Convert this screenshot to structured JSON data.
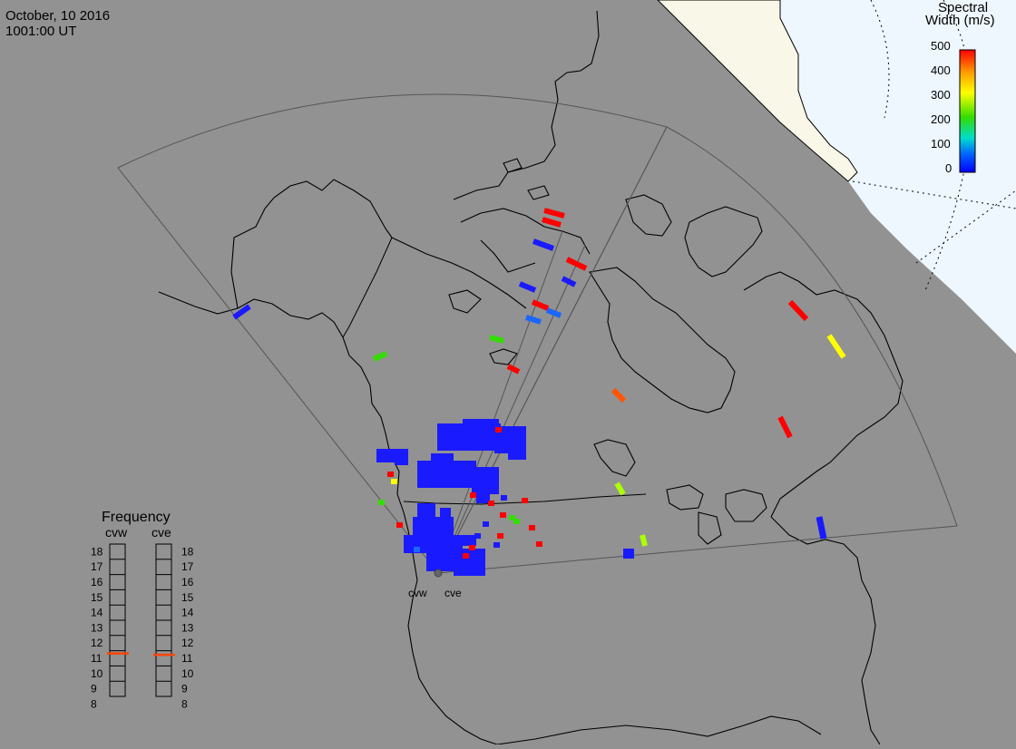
{
  "header": {
    "date": "October, 10 2016",
    "time": "1001:00 UT"
  },
  "colorbar": {
    "title_line1": "Spectral",
    "title_line2": "Width (m/s)",
    "ticks": [
      "500",
      "400",
      "300",
      "200",
      "100",
      "0"
    ],
    "scale_min": 0,
    "scale_max": 500,
    "colors": [
      "#ff0000",
      "#ff9900",
      "#ffff00",
      "#33dd00",
      "#00ddcc",
      "#0066ff",
      "#0000ff"
    ]
  },
  "frequency": {
    "title": "Frequency",
    "radars": [
      {
        "code": "cvw",
        "value_mhz": 10.6
      },
      {
        "code": "cve",
        "value_mhz": 10.5
      }
    ],
    "scale": [
      "18",
      "17",
      "16",
      "15",
      "14",
      "13",
      "12",
      "11",
      "10",
      "9",
      "8"
    ],
    "marker_color": "#ff4400"
  },
  "map": {
    "land_color": "#929292",
    "ocean_sunlit_color": "#eef7fd",
    "dayside_land_color": "#f8f7e8",
    "radar_sites": [
      {
        "code": "cvw"
      },
      {
        "code": "cve"
      }
    ]
  }
}
